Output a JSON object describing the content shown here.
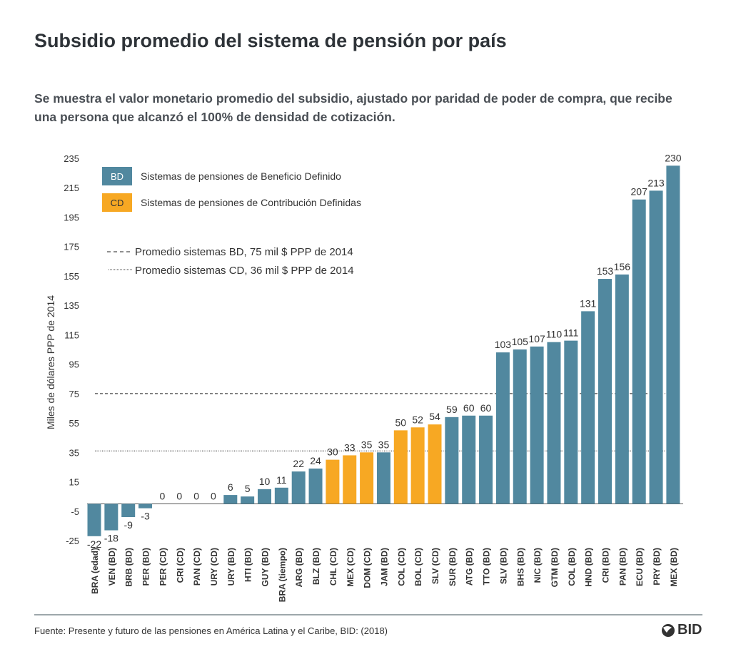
{
  "title": "Subsidio promedio del sistema de pensión por país",
  "subtitle": "Se muestra el valor monetario promedio del subsidio, ajustado por paridad de poder de compra, que recibe una persona que alcanzó el 100% de densidad de cotización.",
  "source": "Fuente:  Presente y futuro de las pensiones en América Latina y el Caribe, BID: (2018)",
  "logo_text": "BID",
  "chart_data": {
    "type": "bar",
    "ylabel": "Miles de dólares PPP de 2014",
    "ylim": [
      -25,
      235
    ],
    "yticks": [
      -25,
      -5,
      15,
      35,
      55,
      75,
      95,
      115,
      135,
      155,
      175,
      195,
      215,
      235
    ],
    "grid": false,
    "legend_position": "top-left",
    "colors": {
      "BD": "#51889f",
      "CD": "#f7a823"
    },
    "legend": [
      {
        "key": "BD",
        "label": "Sistemas de pensiones de Beneficio Definido"
      },
      {
        "key": "CD",
        "label": "Sistemas de pensiones de Contribución Definidas"
      }
    ],
    "reference_lines": [
      {
        "value": 75,
        "style": "dashed",
        "label": "Promedio sistemas BD, 75 mil $ PPP de 2014"
      },
      {
        "value": 36,
        "style": "dotted",
        "label": "Promedio sistemas CD, 36 mil $ PPP de 2014"
      }
    ],
    "categories": [
      "BRA (edad)",
      "VEN (BD)",
      "BRB (BD)",
      "PER (BD)",
      "PER (CD)",
      "CRI (CD)",
      "PAN (CD)",
      "URY (CD)",
      "URY (BD)",
      "HTI (BD)",
      "GUY (BD)",
      "BRA (tiempo)",
      "ARG (BD)",
      "BLZ (BD)",
      "CHL (CD)",
      "MEX (CD)",
      "DOM (CD)",
      "JAM (BD)",
      "COL (CD)",
      "BOL (CD)",
      "SLV (CD)",
      "SUR (BD)",
      "ATG (BD)",
      "TTO (BD)",
      "SLV (BD)",
      "BHS (BD)",
      "NIC (BD)",
      "GTM (BD)",
      "COL (BD)",
      "HND (BD)",
      "CRI (BD)",
      "PAN (BD)",
      "ECU (BD)",
      "PRY (BD)",
      "MEX (BD)"
    ],
    "system": [
      "BD",
      "BD",
      "BD",
      "BD",
      "CD",
      "CD",
      "CD",
      "CD",
      "BD",
      "BD",
      "BD",
      "BD",
      "BD",
      "BD",
      "CD",
      "CD",
      "CD",
      "BD",
      "CD",
      "CD",
      "CD",
      "BD",
      "BD",
      "BD",
      "BD",
      "BD",
      "BD",
      "BD",
      "BD",
      "BD",
      "BD",
      "BD",
      "BD",
      "BD",
      "BD"
    ],
    "values": [
      -22,
      -18,
      -9,
      -3,
      0,
      0,
      0,
      0,
      6,
      5,
      10,
      11,
      22,
      24,
      30,
      33,
      35,
      35,
      50,
      52,
      54,
      59,
      60,
      60,
      103,
      105,
      107,
      110,
      111,
      131,
      153,
      156,
      207,
      213,
      230
    ]
  }
}
